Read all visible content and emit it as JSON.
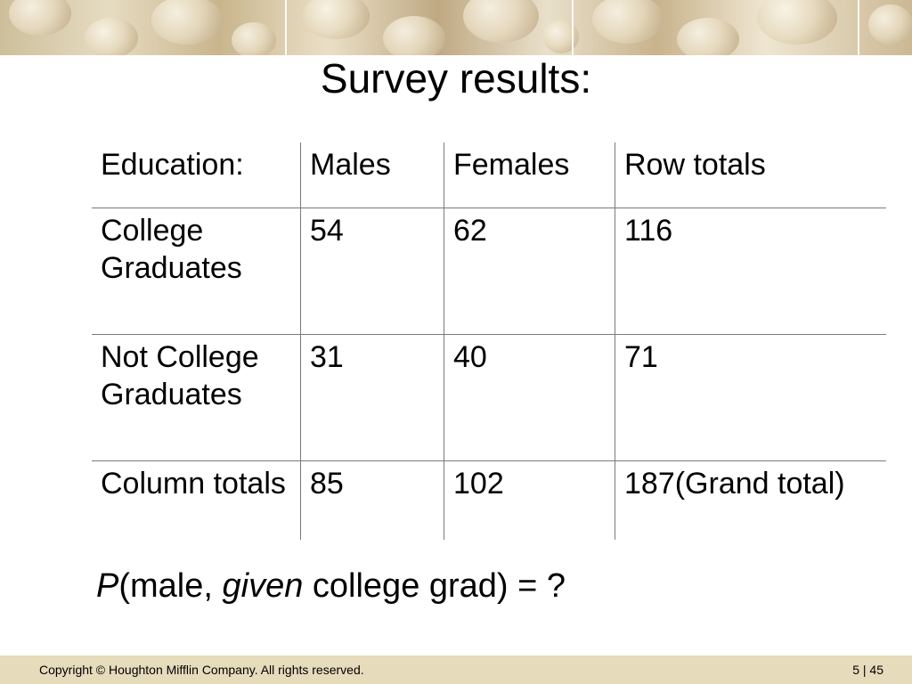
{
  "slide": {
    "title": "Survey results:",
    "table": {
      "headers": [
        "Education:",
        "Males",
        "Females",
        "Row totals"
      ],
      "rows": [
        {
          "label": "College Graduates",
          "males": "54",
          "females": "62",
          "total": "116"
        },
        {
          "label": "Not College Graduates",
          "males": "31",
          "females": "40",
          "total": "71"
        },
        {
          "label": "Column totals",
          "males": "85",
          "females": "102",
          "total": "187(Grand total)"
        }
      ]
    },
    "question": {
      "p": "P",
      "part1": "(male, ",
      "given": "given",
      "part2": " college grad) = ?"
    }
  },
  "footer": {
    "copyright": "Copyright © Houghton Mifflin Company.  All rights reserved.",
    "slide_number": "5 | 45"
  },
  "colors": {
    "footer_bg": "#e6dbbb",
    "rule": "#7a7a7a"
  }
}
